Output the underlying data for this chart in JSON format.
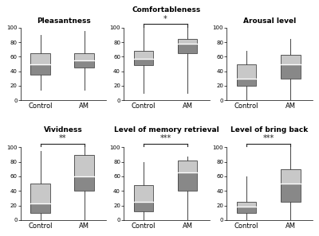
{
  "subplots": [
    {
      "title": "Pleasantness",
      "significance": null,
      "control": {
        "whisker_low": 15,
        "q1": 35,
        "median": 50,
        "q3": 65,
        "whisker_high": 90
      },
      "am": {
        "whisker_low": 15,
        "q1": 45,
        "median": 55,
        "q3": 65,
        "whisker_high": 95
      }
    },
    {
      "title": "Comfortableness",
      "significance": "*",
      "control": {
        "whisker_low": 10,
        "q1": 48,
        "median": 57,
        "q3": 68,
        "whisker_high": 100
      },
      "am": {
        "whisker_low": 10,
        "q1": 65,
        "median": 78,
        "q3": 85,
        "whisker_high": 100
      }
    },
    {
      "title": "Arousal level",
      "significance": null,
      "control": {
        "whisker_low": 0,
        "q1": 20,
        "median": 30,
        "q3": 50,
        "whisker_high": 68
      },
      "am": {
        "whisker_low": 0,
        "q1": 30,
        "median": 50,
        "q3": 63,
        "whisker_high": 85
      }
    },
    {
      "title": "Vividness",
      "significance": "**",
      "control": {
        "whisker_low": 0,
        "q1": 10,
        "median": 23,
        "q3": 50,
        "whisker_high": 95
      },
      "am": {
        "whisker_low": 0,
        "q1": 40,
        "median": 60,
        "q3": 90,
        "whisker_high": 100
      }
    },
    {
      "title": "Level of memory retrieval",
      "significance": "***",
      "control": {
        "whisker_low": 0,
        "q1": 12,
        "median": 25,
        "q3": 48,
        "whisker_high": 80
      },
      "am": {
        "whisker_low": 0,
        "q1": 40,
        "median": 65,
        "q3": 82,
        "whisker_high": 87
      }
    },
    {
      "title": "Level of bring back",
      "significance": "***",
      "control": {
        "whisker_low": 0,
        "q1": 10,
        "median": 18,
        "q3": 25,
        "whisker_high": 60
      },
      "am": {
        "whisker_low": 0,
        "q1": 25,
        "median": 50,
        "q3": 70,
        "whisker_high": 100
      }
    }
  ],
  "box_color_light": "#c8c8c8",
  "box_color_dark": "#888888",
  "whisker_color": "#444444",
  "sig_bracket_color": "#222222",
  "xlabel_control": "Control",
  "xlabel_am": "AM",
  "ylim": [
    0,
    100
  ],
  "yticks": [
    0,
    20,
    40,
    60,
    80,
    100
  ],
  "background_color": "#ffffff"
}
